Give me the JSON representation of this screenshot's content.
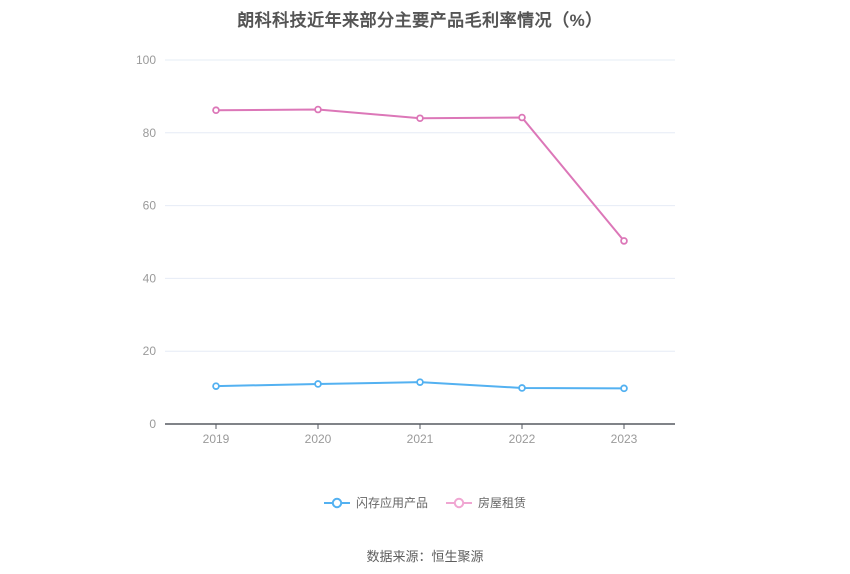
{
  "chart_data": {
    "type": "line",
    "title": "朗科科技近年来部分主要产品毛利率情况（%）",
    "categories": [
      "2019",
      "2020",
      "2021",
      "2022",
      "2023"
    ],
    "series": [
      {
        "name": "闪存应用产品",
        "color": "#53b1f1",
        "legend_color": "#53b1f1",
        "values": [
          10.4,
          11.0,
          11.5,
          9.9,
          9.8
        ]
      },
      {
        "name": "房屋租赁",
        "color": "#dc77b8",
        "legend_color": "#f0a6d2",
        "values": [
          86.2,
          86.4,
          84.0,
          84.2,
          50.3
        ]
      }
    ],
    "xlabel": "",
    "ylabel": "",
    "ylim": [
      0,
      100
    ],
    "y_ticks": [
      0,
      20,
      40,
      60,
      80,
      100
    ],
    "grid": "horizontal-only",
    "legend_position": "bottom"
  },
  "footer": {
    "source": "数据来源：恒生聚源"
  },
  "style": {
    "background": "#ffffff",
    "grid_color": "#e6ecf6",
    "axis_color": "#565a60",
    "tick_label_color": "#9a9a9a",
    "title_color": "#555555",
    "legend_text_color": "#676767",
    "source_color": "#5e5e5e"
  }
}
